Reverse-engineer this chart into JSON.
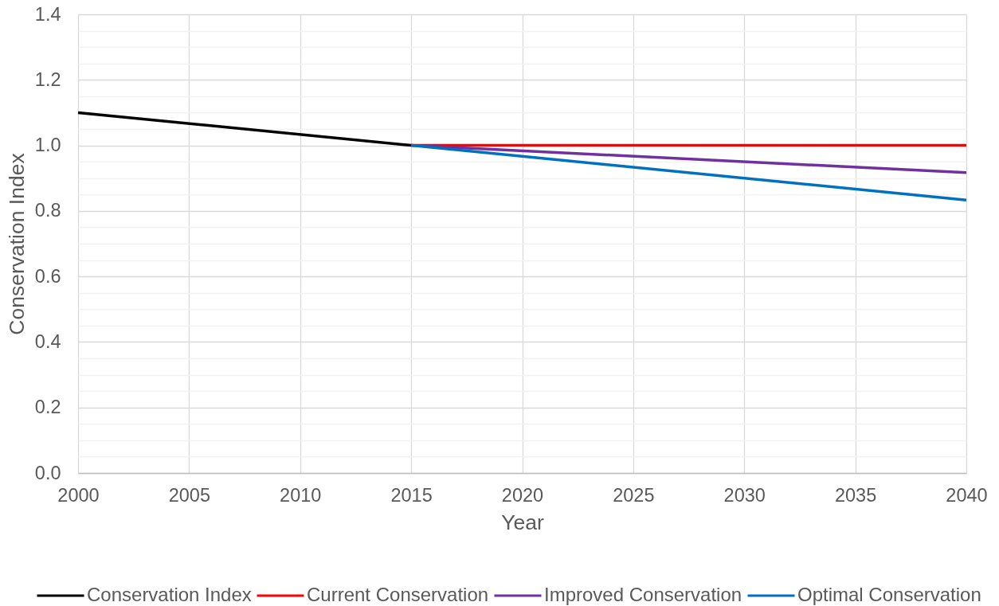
{
  "chart_data": {
    "type": "line",
    "xlabel": "Year",
    "ylabel": "Conservation Index",
    "series": [
      {
        "name": "Conservation Index",
        "color": "#000000",
        "x": [
          2000,
          2015
        ],
        "values": [
          1.1,
          1.0
        ]
      },
      {
        "name": "Current Conservation",
        "color": "#ff0000",
        "x": [
          2015,
          2040
        ],
        "values": [
          1.0,
          1.0
        ]
      },
      {
        "name": "Improved Conservation",
        "color": "#7030a0",
        "x": [
          2015,
          2040
        ],
        "values": [
          1.0,
          0.917
        ]
      },
      {
        "name": "Optimal Conservation",
        "color": "#0070c0",
        "x": [
          2015,
          2040
        ],
        "values": [
          1.0,
          0.833
        ]
      }
    ],
    "xlim": [
      2000,
      2040
    ],
    "xticks": [
      2000,
      2005,
      2010,
      2015,
      2020,
      2025,
      2030,
      2035,
      2040
    ],
    "ylim": [
      0,
      1.4
    ],
    "yticks": [
      {
        "value": 0,
        "label": "0.0"
      },
      {
        "value": 0.05,
        "label": null
      },
      {
        "value": 0.1,
        "label": null
      },
      {
        "value": 0.15,
        "label": null
      },
      {
        "value": 0.2,
        "label": "0.2"
      },
      {
        "value": 0.25,
        "label": null
      },
      {
        "value": 0.3,
        "label": null
      },
      {
        "value": 0.35,
        "label": null
      },
      {
        "value": 0.4,
        "label": "0.4"
      },
      {
        "value": 0.45,
        "label": null
      },
      {
        "value": 0.5,
        "label": null
      },
      {
        "value": 0.55,
        "label": null
      },
      {
        "value": 0.6,
        "label": "0.6"
      },
      {
        "value": 0.65,
        "label": null
      },
      {
        "value": 0.7,
        "label": null
      },
      {
        "value": 0.75,
        "label": null
      },
      {
        "value": 0.8,
        "label": "0.8"
      },
      {
        "value": 0.85,
        "label": null
      },
      {
        "value": 0.9,
        "label": null
      },
      {
        "value": 0.95,
        "label": null
      },
      {
        "value": 1.0,
        "label": "1.0"
      },
      {
        "value": 1.05,
        "label": null
      },
      {
        "value": 1.1,
        "label": null
      },
      {
        "value": 1.15,
        "label": null
      },
      {
        "value": 1.2,
        "label": "1.2"
      },
      {
        "value": 1.25,
        "label": null
      },
      {
        "value": 1.3,
        "label": null
      },
      {
        "value": 1.35,
        "label": null
      },
      {
        "value": 1.4,
        "label": "1.4"
      }
    ],
    "grid": true,
    "legend": "bottom",
    "line_style": "solid"
  }
}
